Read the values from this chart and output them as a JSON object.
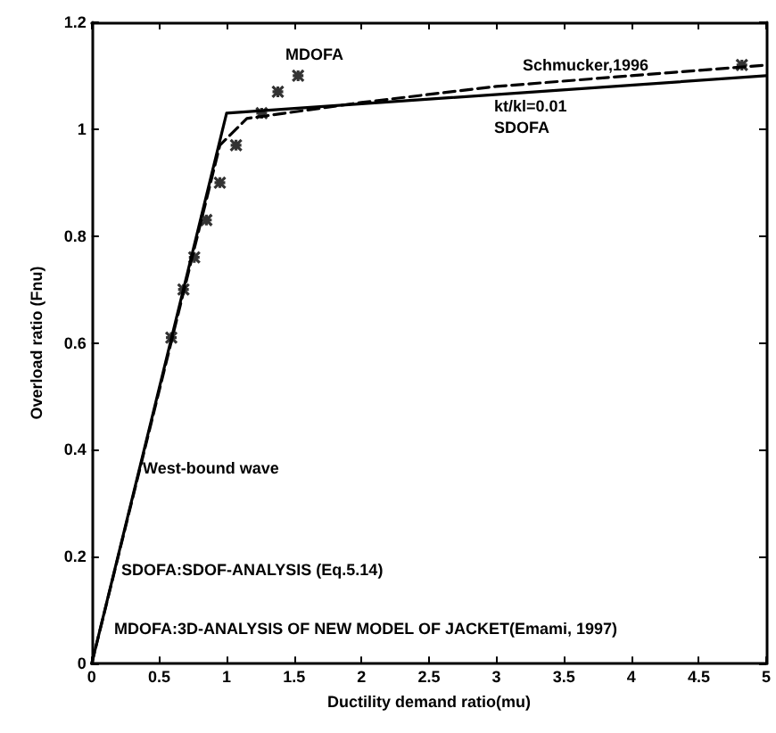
{
  "chart_data": {
    "type": "line",
    "xlabel": "Ductility demand ratio(mu)",
    "ylabel": "Overload ratio (Fnu)",
    "xlim": [
      0,
      5
    ],
    "ylim": [
      0,
      1.2
    ],
    "xticks": [
      0,
      0.5,
      1,
      1.5,
      2,
      2.5,
      3,
      3.5,
      4,
      4.5,
      5
    ],
    "yticks": [
      0,
      0.2,
      0.4,
      0.6,
      0.8,
      1,
      1.2
    ],
    "grid": false,
    "series": [
      {
        "color": "#000000",
        "line_style": "solid",
        "marker": "none",
        "x": [
          0,
          1.0,
          5
        ],
        "values": [
          0,
          1.03,
          1.1
        ]
      },
      {
        "color": "#000000",
        "line_style": "dashed",
        "marker": "none",
        "x": [
          0,
          0.95,
          1.15,
          2,
          3,
          4,
          5
        ],
        "values": [
          0,
          0.97,
          1.02,
          1.05,
          1.08,
          1.1,
          1.12
        ]
      },
      {
        "type": "scatter",
        "color": "#000000",
        "marker": "cross",
        "x": [
          0.59,
          0.68,
          0.76,
          0.85,
          0.95,
          1.07,
          1.26,
          1.38,
          1.53,
          4.82
        ],
        "values": [
          0.61,
          0.7,
          0.76,
          0.83,
          0.9,
          0.97,
          1.03,
          1.07,
          1.1,
          1.12
        ]
      }
    ],
    "annotations": [
      "MDOFA",
      "Schmucker,1996",
      "kt/kl=0.01",
      "SDOFA",
      "West-bound wave",
      "SDOFA:SDOF-ANALYSIS (Eq.5.14)",
      "MDOFA:3D-ANALYSIS OF NEW MODEL OF JACKET(Emami, 1997)"
    ]
  }
}
